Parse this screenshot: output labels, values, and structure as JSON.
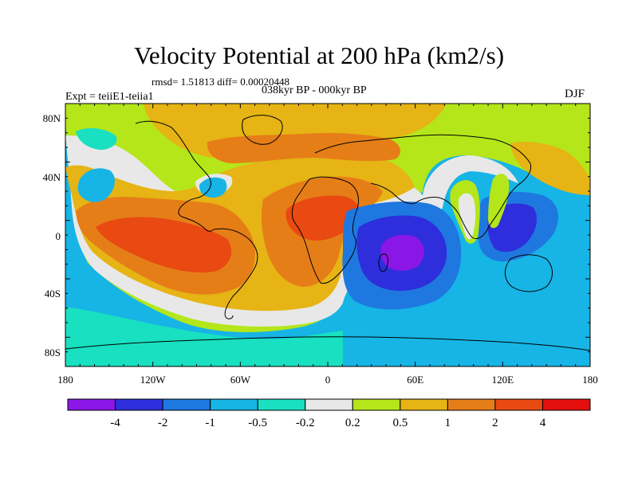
{
  "title": "Velocity Potential at 200 hPa (km2/s)",
  "stats_line": "rmsd= 1.51813 diff= 0.00020448",
  "period": "038kyr BP - 000kyr BP",
  "experiment": "Expt = teiiE1-teiia1",
  "season": "DJF",
  "lat_labels": [
    "80N",
    "40N",
    "0",
    "40S",
    "80S"
  ],
  "lon_labels": [
    "180",
    "120W",
    "60W",
    "0",
    "60E",
    "120E",
    "180"
  ],
  "colorbar": {
    "labels": [
      "-4",
      "-2",
      "-1",
      "-0.5",
      "-0.2",
      "0.2",
      "0.5",
      "1",
      "2",
      "4"
    ],
    "colors": [
      "#8A17E6",
      "#2E2EDC",
      "#1E78E0",
      "#17B4E6",
      "#18E0C0",
      "#E8E8E8",
      "#B4E61A",
      "#E6B414",
      "#E67E18",
      "#E84A12",
      "#E41010"
    ]
  },
  "map_colors": {
    "land_outline": "#000000",
    "strong_neg": "#8A17E6",
    "neg": "#2E2EDC",
    "mod_neg": "#1E78E0",
    "weak_neg": "#17B4E6",
    "slight_neg": "#18E0C0",
    "near_zero": "#E8E8E8",
    "slight_pos": "#B4E61A",
    "weak_pos": "#E6B414",
    "mod_pos": "#E67E18",
    "strong_pos": "#E84A12"
  }
}
